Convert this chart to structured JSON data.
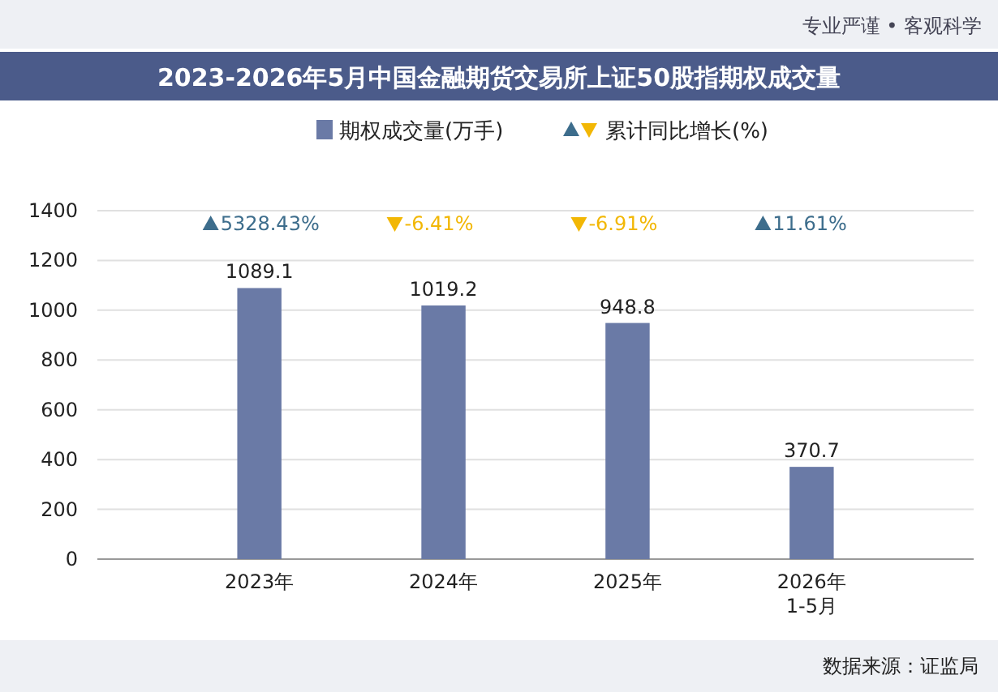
{
  "chart_data": {
    "type": "bar",
    "title": "2023-2026年5月中国金融期货交易所上证50股指期权成交量",
    "categories": [
      "2023年",
      "2024年",
      "2025年",
      "2026年\n1-5月"
    ],
    "series": [
      {
        "name": "期权成交量(万手)",
        "color": "#6a7aa6",
        "values": [
          1089.1,
          1019.2,
          948.8,
          370.7
        ]
      }
    ],
    "data_labels": true,
    "ylim": [
      0,
      1400
    ],
    "yticks": [
      0,
      200,
      400,
      600,
      800,
      1000,
      1200,
      1400
    ],
    "grid": "y",
    "legend": "top",
    "annotations": [
      "专业严谨 • 客观科学",
      "数据来源：证监局",
      "累计同比增长(%)",
      "5328.43%",
      "-6.41%",
      "-6.91%",
      "11.61%"
    ]
  }
}
